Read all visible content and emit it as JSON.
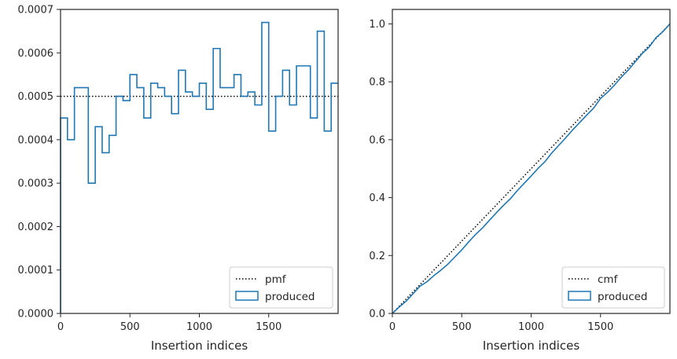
{
  "chart_data": [
    {
      "type": "line",
      "xlabel": "Insertion indices",
      "ylabel": "",
      "xlim": [
        0,
        2000
      ],
      "ylim": [
        0,
        0.0007
      ],
      "x_ticks": [
        0,
        500,
        1000,
        1500
      ],
      "x_tick_labels": [
        "0",
        "500",
        "1000",
        "1500"
      ],
      "y_ticks": [
        0,
        0.0001,
        0.0002,
        0.0003,
        0.0004,
        0.0005,
        0.0006,
        0.0007
      ],
      "y_tick_labels": [
        "0.0000",
        "0.0001",
        "0.0002",
        "0.0003",
        "0.0004",
        "0.0005",
        "0.0006",
        "0.0007"
      ],
      "legend_position": "lower-right",
      "series": [
        {
          "name": "pmf",
          "style": "dotted",
          "color": "#000000",
          "x": [
            0,
            2000
          ],
          "values": [
            0.0005,
            0.0005
          ]
        },
        {
          "name": "produced",
          "style": "step",
          "color": "#1f77b4",
          "bin_edges": [
            0,
            50,
            100,
            150,
            200,
            250,
            300,
            350,
            400,
            450,
            500,
            550,
            600,
            650,
            700,
            750,
            800,
            850,
            900,
            950,
            1000,
            1050,
            1100,
            1150,
            1200,
            1250,
            1300,
            1350,
            1400,
            1450,
            1500,
            1550,
            1600,
            1650,
            1700,
            1750,
            1800,
            1850,
            1900,
            1950,
            2000
          ],
          "values": [
            0.00045,
            0.0004,
            0.00052,
            0.00052,
            0.0003,
            0.00043,
            0.00037,
            0.00041,
            0.0005,
            0.00049,
            0.00055,
            0.00052,
            0.00045,
            0.00053,
            0.00052,
            0.0005,
            0.00046,
            0.00056,
            0.00051,
            0.0005,
            0.00053,
            0.00047,
            0.00061,
            0.00052,
            0.00052,
            0.00055,
            0.0005,
            0.00051,
            0.00048,
            0.00067,
            0.00042,
            0.0005,
            0.00056,
            0.00048,
            0.00057,
            0.00057,
            0.00045,
            0.00065,
            0.00042,
            0.00053
          ]
        }
      ]
    },
    {
      "type": "line",
      "xlabel": "Insertion indices",
      "ylabel": "",
      "xlim": [
        0,
        2000
      ],
      "ylim": [
        0,
        1.05
      ],
      "x_ticks": [
        0,
        500,
        1000,
        1500
      ],
      "x_tick_labels": [
        "0",
        "500",
        "1000",
        "1500"
      ],
      "y_ticks": [
        0,
        0.2,
        0.4,
        0.6,
        0.8,
        1.0
      ],
      "y_tick_labels": [
        "0.0",
        "0.2",
        "0.4",
        "0.6",
        "0.8",
        "1.0"
      ],
      "legend_position": "lower-right",
      "series": [
        {
          "name": "cmf",
          "style": "dotted",
          "color": "#000000",
          "x": [
            0,
            2000
          ],
          "values": [
            0,
            1.0
          ]
        },
        {
          "name": "produced",
          "style": "solid",
          "color": "#1f77b4",
          "x": [
            0,
            50,
            100,
            150,
            200,
            250,
            300,
            350,
            400,
            450,
            500,
            550,
            600,
            650,
            700,
            750,
            800,
            850,
            900,
            950,
            1000,
            1050,
            1100,
            1150,
            1200,
            1250,
            1300,
            1350,
            1400,
            1450,
            1500,
            1550,
            1600,
            1650,
            1700,
            1750,
            1800,
            1850,
            1900,
            1950,
            2000
          ],
          "values": [
            0,
            0.0225,
            0.0425,
            0.0685,
            0.0945,
            0.1095,
            0.131,
            0.1495,
            0.17,
            0.195,
            0.2195,
            0.247,
            0.273,
            0.2955,
            0.322,
            0.348,
            0.373,
            0.396,
            0.424,
            0.4495,
            0.4745,
            0.501,
            0.5245,
            0.555,
            0.581,
            0.607,
            0.6345,
            0.6595,
            0.685,
            0.709,
            0.7425,
            0.7635,
            0.7885,
            0.8165,
            0.8405,
            0.869,
            0.8975,
            0.92,
            0.9525,
            0.9735,
            1.0
          ]
        }
      ]
    }
  ]
}
